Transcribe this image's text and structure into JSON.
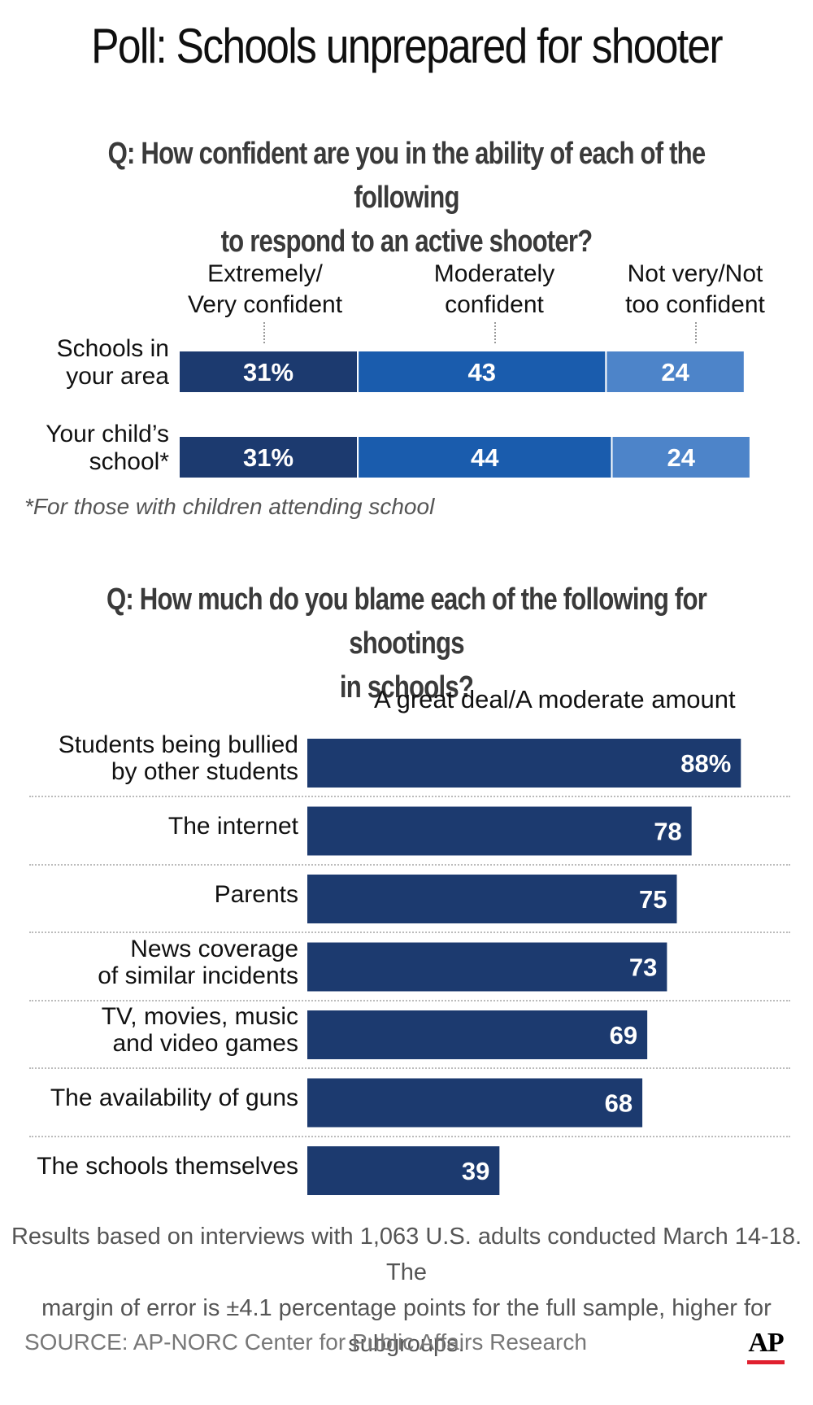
{
  "title": "Poll: Schools unprepared for shooter",
  "q1": {
    "line1": "Q: How confident are you in the ability of each of the following",
    "line2": "to respond to an active shooter?"
  },
  "q2": {
    "line1": "Q: How much do you blame each of the following for shootings",
    "line2": "in schools?"
  },
  "footnote": "*For those with children attending school",
  "subhead": "A great deal/A moderate amount",
  "note": {
    "line1": "Results based on interviews with 1,063 U.S. adults conducted March 14-18. The",
    "line2": "margin of error is ±4.1 percentage points for the full sample, higher for subgroups."
  },
  "source": "SOURCE: AP-NORC Center for Public Affairs Research",
  "logo": "AP",
  "colors": {
    "dark_navy": "#1c3a6f",
    "medium_blue": "#1a5cad",
    "light_blue": "#4d84c9",
    "logo_red": "#e0202f"
  },
  "chart_data": [
    {
      "type": "bar",
      "stacked": true,
      "orientation": "horizontal",
      "series_labels": [
        [
          "Extremely/",
          "Very confident"
        ],
        [
          "Moderately",
          "confident"
        ],
        [
          "Not very/Not",
          "too confident"
        ]
      ],
      "rows": [
        {
          "label": [
            "Schools in",
            "your area"
          ],
          "values": [
            31,
            43,
            24
          ],
          "value_labels": [
            "31%",
            "43",
            "24"
          ]
        },
        {
          "label": [
            "Your child’s",
            "school*"
          ],
          "values": [
            31,
            44,
            24
          ],
          "value_labels": [
            "31%",
            "44",
            "24"
          ]
        }
      ]
    },
    {
      "type": "bar",
      "orientation": "horizontal",
      "series_name": "A great deal/A moderate amount",
      "categories": [
        [
          "Students being bullied",
          "by other students"
        ],
        [
          "The internet"
        ],
        [
          "Parents"
        ],
        [
          "News coverage",
          "of similar incidents"
        ],
        [
          "TV, movies, music",
          "and video games"
        ],
        [
          "The availability of guns"
        ],
        [
          "The schools themselves"
        ]
      ],
      "values": [
        88,
        78,
        75,
        73,
        69,
        68,
        39
      ],
      "value_labels": [
        "88%",
        "78",
        "75",
        "73",
        "69",
        "68",
        "39"
      ]
    }
  ]
}
